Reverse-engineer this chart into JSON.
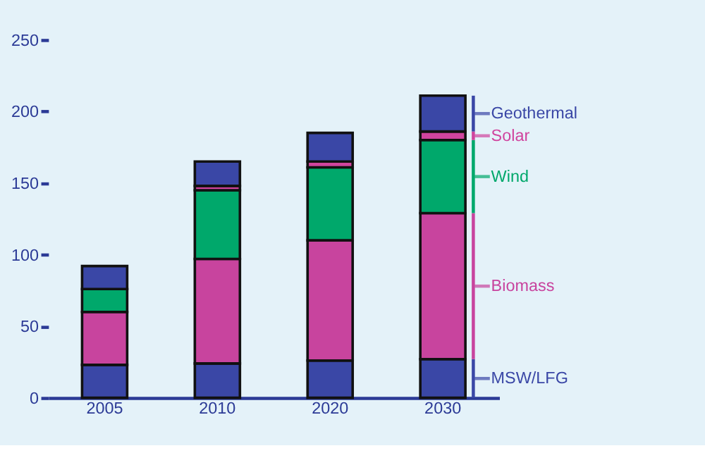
{
  "chart_data": {
    "type": "bar",
    "stacked": true,
    "categories": [
      "2005",
      "2010",
      "2020",
      "2030"
    ],
    "series": [
      {
        "name": "MSW/LFG",
        "color": "#3a47a6",
        "values": [
          23,
          24,
          26,
          27
        ]
      },
      {
        "name": "Biomass",
        "color": "#c8449e",
        "values": [
          37,
          73,
          84,
          102
        ]
      },
      {
        "name": "Wind",
        "color": "#00a86b",
        "values": [
          16,
          48,
          51,
          51
        ]
      },
      {
        "name": "Solar",
        "color": "#d0449e",
        "values": [
          0,
          3,
          4,
          6
        ]
      },
      {
        "name": "Geothermal",
        "color": "#3a47a6",
        "values": [
          16,
          17,
          20,
          25
        ]
      }
    ],
    "ylim": [
      0,
      250
    ],
    "yticks": [
      0,
      50,
      100,
      150,
      200,
      250
    ],
    "grid": false,
    "legend": "right"
  }
}
